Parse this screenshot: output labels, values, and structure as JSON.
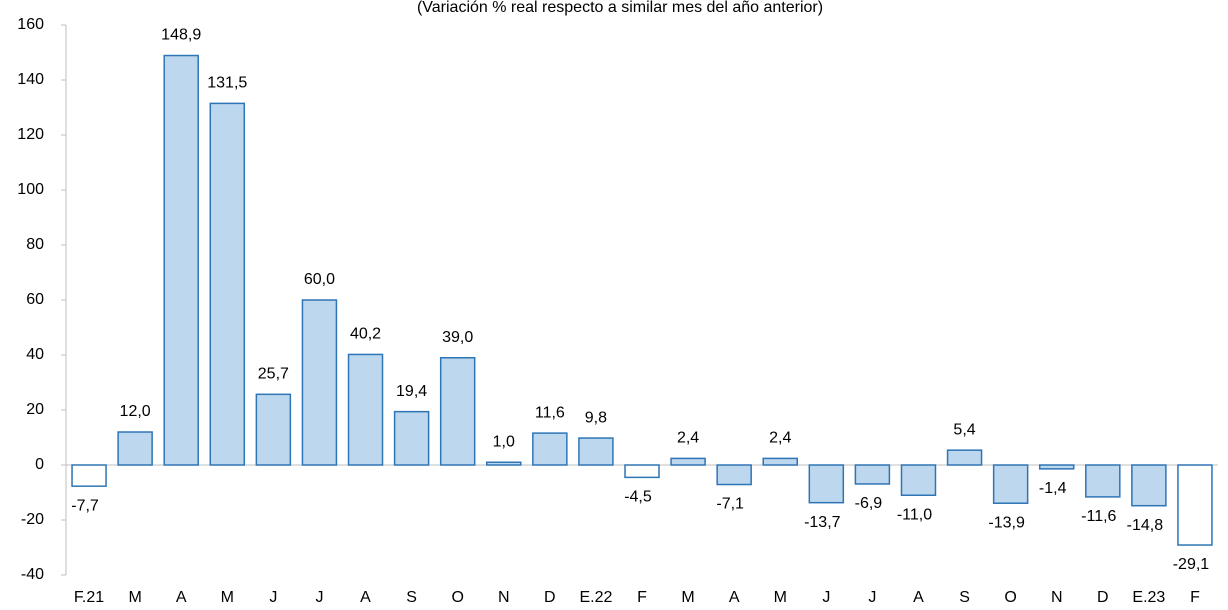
{
  "chart_data": {
    "type": "bar",
    "subtitle": "(Variación % real respecto a similar mes del año anterior)",
    "categories": [
      "F.21",
      "M",
      "A",
      "M",
      "J",
      "J",
      "A",
      "S",
      "O",
      "N",
      "D",
      "E.22",
      "F",
      "M",
      "A",
      "M",
      "J",
      "J",
      "A",
      "S",
      "O",
      "N",
      "D",
      "E.23",
      "F"
    ],
    "values": [
      -7.7,
      12.0,
      148.9,
      131.5,
      25.7,
      60.0,
      40.2,
      19.4,
      39.0,
      1.0,
      11.6,
      9.8,
      -4.5,
      2.4,
      -7.1,
      2.4,
      -13.7,
      -6.9,
      -11.0,
      5.4,
      -13.9,
      -1.4,
      -11.6,
      -14.8,
      -29.1
    ],
    "value_labels": [
      "-7,7",
      "12,0",
      "148,9",
      "131,5",
      "25,7",
      "60,0",
      "40,2",
      "19,4",
      "39,0",
      "1,0",
      "11,6",
      "9,8",
      "-4,5",
      "2,4",
      "-7,1",
      "2,4",
      "-13,7",
      "-6,9",
      "-11,0",
      "5,4",
      "-13,9",
      "-1,4",
      "-11,6",
      "-14,8",
      "-29,1"
    ],
    "colors": [
      "#ffffff",
      "#bdd7ee",
      "#bdd7ee",
      "#bdd7ee",
      "#bdd7ee",
      "#bdd7ee",
      "#bdd7ee",
      "#bdd7ee",
      "#bdd7ee",
      "#bdd7ee",
      "#bdd7ee",
      "#bdd7ee",
      "#ffffff",
      "#bdd7ee",
      "#bdd7ee",
      "#bdd7ee",
      "#bdd7ee",
      "#bdd7ee",
      "#bdd7ee",
      "#bdd7ee",
      "#bdd7ee",
      "#bdd7ee",
      "#bdd7ee",
      "#bdd7ee",
      "#ffffff"
    ],
    "edge_color": "#2e75b6",
    "ylim": [
      -40,
      160
    ],
    "yticks": [
      -40,
      -20,
      0,
      20,
      40,
      60,
      80,
      100,
      120,
      140,
      160
    ],
    "grid": false
  }
}
